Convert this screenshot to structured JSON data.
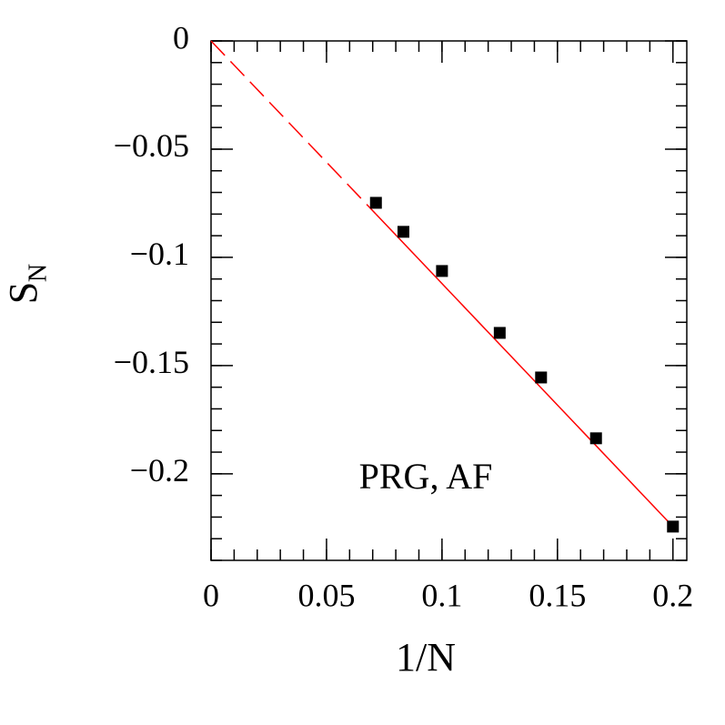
{
  "chart_data": {
    "type": "scatter",
    "xlabel": "1/N",
    "ylabel": "S",
    "ylabel_subscript": "N",
    "annotation": "PRG, AF",
    "xlim": [
      0,
      0.206
    ],
    "ylim": [
      -0.24,
      0
    ],
    "xticks": [
      0,
      0.05,
      0.1,
      0.15,
      0.2
    ],
    "yticks": [
      0,
      {
        "value": -0.05,
        "label": "−0.05"
      },
      {
        "value": -0.1,
        "label": "−0.1"
      },
      {
        "value": -0.15,
        "label": "−0.15"
      },
      {
        "value": -0.2,
        "label": "−0.2"
      }
    ],
    "x_minor_step": 0.01,
    "y_minor_step": 0.01,
    "series": [
      {
        "color": "#000000",
        "marker": "square",
        "x": [
          0.0714,
          0.0833,
          0.1,
          0.125,
          0.1429,
          0.1667,
          0.2
        ],
        "values": [
          -0.0748,
          -0.0882,
          -0.1063,
          -0.1349,
          -0.1555,
          -0.1836,
          -0.2244
        ]
      }
    ],
    "lines": [
      {
        "color": "#ff0000",
        "dashed": true,
        "x": [
          0,
          0.0714
        ],
        "values": [
          0,
          -0.08
        ]
      },
      {
        "color": "#ff0000",
        "dashed": false,
        "x": [
          0.0714,
          0.2
        ],
        "values": [
          -0.08,
          -0.2244
        ]
      }
    ]
  }
}
